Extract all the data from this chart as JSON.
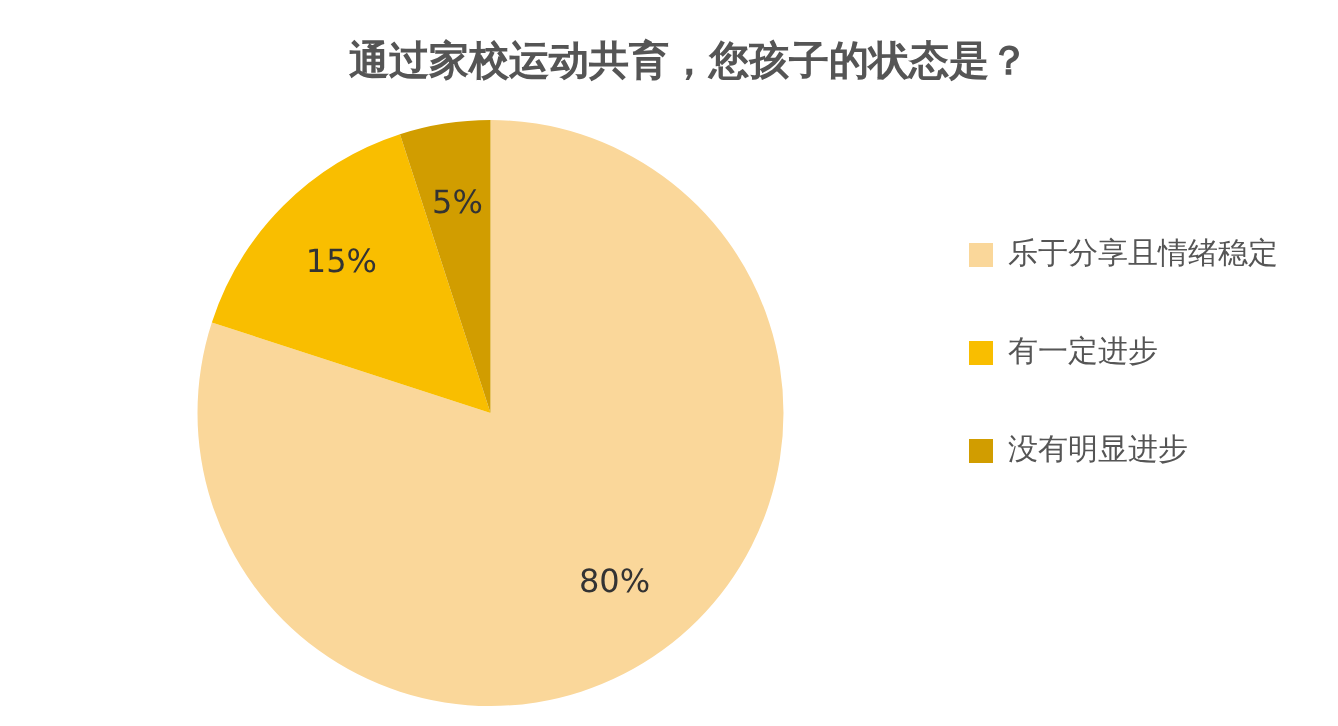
{
  "chart_data": {
    "type": "pie",
    "title": "通过家校运动共育，您孩子的状态是？",
    "categories": [
      "乐于分享且情绪稳定",
      "有一定进步",
      "没有明显进步"
    ],
    "values": [
      80,
      15,
      5
    ],
    "colors": [
      "#fad79a",
      "#f9be00",
      "#d19d00"
    ],
    "value_labels": [
      "80%",
      "15%",
      "5%"
    ],
    "legend": "right"
  }
}
